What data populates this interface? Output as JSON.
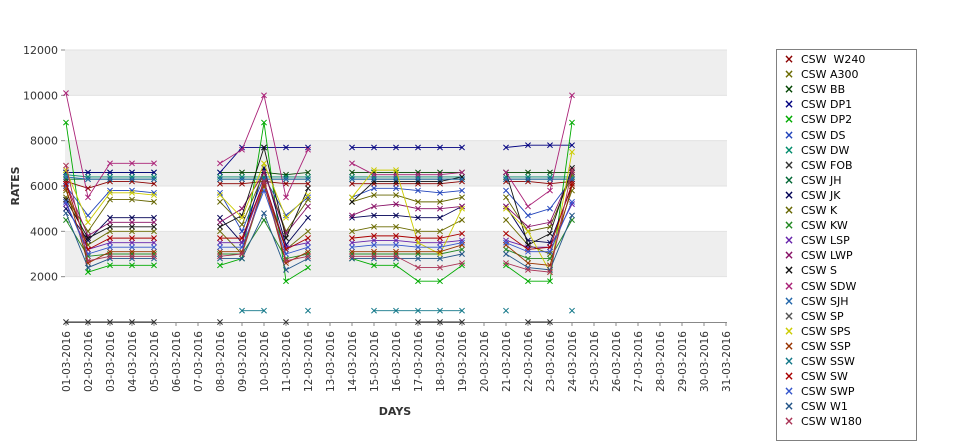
{
  "chart_data": {
    "type": "line",
    "title": "",
    "xlabel": "DAYS",
    "ylabel": "RATES",
    "ylim": [
      0,
      12000
    ],
    "yticks": [
      "2000",
      "4000",
      "6000",
      "8000",
      "10000",
      "12000"
    ],
    "grid": "horizontal alternating bands",
    "legend_position": "right",
    "categories": [
      "01-03-2016",
      "02-03-2016",
      "03-03-2016",
      "04-03-2016",
      "05-03-2016",
      "06-03-2016",
      "07-03-2016",
      "08-03-2016",
      "09-03-2016",
      "10-03-2016",
      "11-03-2016",
      "12-03-2016",
      "13-03-2016",
      "14-03-2016",
      "15-03-2016",
      "16-03-2016",
      "17-03-2016",
      "18-03-2016",
      "19-03-2016",
      "20-03-2016",
      "21-03-2016",
      "22-03-2016",
      "23-03-2016",
      "24-03-2016",
      "25-03-2016",
      "26-03-2016",
      "27-03-2016",
      "28-03-2016",
      "29-03-2016",
      "30-03-2016",
      "31-03-2016"
    ],
    "series": [
      {
        "name": "CSW  W240",
        "color": "#8b0000",
        "values": [
          6200,
          5900,
          6200,
          6200,
          6100,
          null,
          null,
          6100,
          6100,
          6200,
          6100,
          6100,
          null,
          6100,
          6100,
          6100,
          6100,
          6100,
          6200,
          null,
          6200,
          6200,
          6100,
          6200,
          null,
          null,
          null,
          null,
          null,
          null,
          null
        ]
      },
      {
        "name": "CSW A300",
        "color": "#6b6b00",
        "values": [
          5800,
          3400,
          4000,
          4000,
          4000,
          null,
          null,
          4000,
          3000,
          6000,
          3200,
          4000,
          null,
          4000,
          4200,
          4200,
          4000,
          4000,
          4500,
          null,
          4500,
          3400,
          3000,
          5800,
          null,
          null,
          null,
          null,
          null,
          null,
          null
        ]
      },
      {
        "name": "CSW BB",
        "color": "#004400",
        "values": [
          6600,
          6600,
          6600,
          6600,
          6600,
          null,
          null,
          6600,
          6600,
          6600,
          6500,
          6600,
          null,
          6600,
          6600,
          6600,
          6600,
          6600,
          6600,
          null,
          6600,
          6600,
          6600,
          6600,
          null,
          null,
          null,
          null,
          null,
          null,
          null
        ]
      },
      {
        "name": "CSW DP1",
        "color": "#000080",
        "values": [
          6600,
          6600,
          6600,
          6600,
          6600,
          null,
          null,
          6600,
          7700,
          7700,
          7700,
          7700,
          null,
          7700,
          7700,
          7700,
          7700,
          7700,
          7700,
          null,
          7700,
          7800,
          7800,
          7800,
          null,
          null,
          null,
          null,
          null,
          null,
          null
        ]
      },
      {
        "name": "CSW DP2",
        "color": "#00aa00",
        "values": [
          8800,
          2200,
          2500,
          2500,
          2500,
          null,
          null,
          2500,
          2800,
          8800,
          1800,
          2400,
          null,
          2800,
          2500,
          2500,
          1800,
          1800,
          2500,
          null,
          2500,
          1800,
          1800,
          8800,
          null,
          null,
          null,
          null,
          null,
          null,
          null
        ]
      },
      {
        "name": "CSW DS",
        "color": "#2244bb",
        "values": [
          6000,
          4700,
          5800,
          5800,
          5700,
          null,
          null,
          5700,
          4000,
          6400,
          4700,
          5500,
          null,
          5500,
          5900,
          5900,
          5800,
          5700,
          5800,
          null,
          5800,
          4700,
          5000,
          6300,
          null,
          null,
          null,
          null,
          null,
          null,
          null
        ]
      },
      {
        "name": "CSW DW",
        "color": "#008b6b",
        "values": [
          6500,
          6400,
          6400,
          6400,
          6400,
          null,
          null,
          6400,
          6400,
          6400,
          6400,
          6400,
          null,
          6400,
          6400,
          6400,
          6400,
          6400,
          6400,
          null,
          6400,
          6400,
          6400,
          6400,
          null,
          null,
          null,
          null,
          null,
          null,
          null
        ]
      },
      {
        "name": "CSW FOB",
        "color": "#333333",
        "values": [
          0,
          0,
          0,
          0,
          0,
          null,
          null,
          0,
          null,
          null,
          0,
          null,
          null,
          null,
          null,
          null,
          0,
          0,
          0,
          null,
          null,
          0,
          0,
          null,
          null,
          null,
          null,
          null,
          null,
          null,
          null
        ]
      },
      {
        "name": "CSW JH",
        "color": "#006633",
        "values": [
          6300,
          6300,
          6300,
          6300,
          6300,
          null,
          null,
          6300,
          6300,
          6300,
          6300,
          6300,
          null,
          6300,
          6300,
          6300,
          6300,
          6300,
          6300,
          null,
          6300,
          6300,
          6300,
          6300,
          null,
          null,
          null,
          null,
          null,
          null,
          null
        ]
      },
      {
        "name": "CSW JK",
        "color": "#000055",
        "values": [
          5000,
          3600,
          4600,
          4600,
          4600,
          null,
          null,
          4600,
          3500,
          6800,
          3400,
          4600,
          null,
          4600,
          4700,
          4700,
          4600,
          4600,
          5100,
          null,
          5100,
          3600,
          3500,
          6000,
          null,
          null,
          null,
          null,
          null,
          null,
          null
        ]
      },
      {
        "name": "CSW K",
        "color": "#666600",
        "values": [
          5500,
          4000,
          5400,
          5400,
          5300,
          null,
          null,
          5300,
          4300,
          6600,
          4000,
          5400,
          null,
          5300,
          5600,
          5600,
          5300,
          5300,
          5500,
          null,
          5500,
          4000,
          4200,
          6500,
          null,
          null,
          null,
          null,
          null,
          null,
          null
        ]
      },
      {
        "name": "CSW KW",
        "color": "#228822",
        "values": [
          4500,
          2900,
          3000,
          3000,
          3000,
          null,
          null,
          3000,
          3000,
          4500,
          2800,
          3000,
          null,
          3000,
          3000,
          3000,
          3000,
          3000,
          3200,
          null,
          3200,
          2800,
          2800,
          4500,
          null,
          null,
          null,
          null,
          null,
          null,
          null
        ]
      },
      {
        "name": "CSW LSP",
        "color": "#6622aa",
        "values": [
          5200,
          3200,
          3500,
          3500,
          3500,
          null,
          null,
          3500,
          3500,
          6200,
          3300,
          3500,
          null,
          3500,
          3600,
          3600,
          3500,
          3500,
          3600,
          null,
          3600,
          3300,
          3300,
          5200,
          null,
          null,
          null,
          null,
          null,
          null,
          null
        ]
      },
      {
        "name": "CSW LWP",
        "color": "#881166",
        "values": [
          6100,
          3800,
          4400,
          4400,
          4400,
          null,
          null,
          4400,
          5000,
          6600,
          3900,
          5100,
          null,
          4700,
          5100,
          5200,
          5000,
          5000,
          5100,
          null,
          5100,
          4200,
          4400,
          6600,
          null,
          null,
          null,
          null,
          null,
          null,
          null
        ]
      },
      {
        "name": "CSW S",
        "color": "#111111",
        "values": [
          5400,
          3700,
          4200,
          4200,
          4200,
          null,
          null,
          4200,
          4700,
          7700,
          3700,
          5900,
          null,
          5300,
          6200,
          6200,
          6200,
          6200,
          6400,
          null,
          6600,
          3400,
          3900,
          6800,
          null,
          null,
          null,
          null,
          null,
          null,
          null
        ]
      },
      {
        "name": "CSW SDW",
        "color": "#aa2277",
        "values": [
          10100,
          5500,
          7000,
          7000,
          7000,
          null,
          null,
          7000,
          7600,
          10000,
          5500,
          7600,
          null,
          7000,
          6500,
          6500,
          6500,
          6500,
          6600,
          null,
          6600,
          5100,
          5800,
          10000,
          null,
          null,
          null,
          null,
          null,
          null,
          null
        ]
      },
      {
        "name": "CSW SJH",
        "color": "#2266aa",
        "values": [
          6400,
          6300,
          6300,
          6300,
          6300,
          null,
          null,
          6300,
          6300,
          6300,
          6300,
          6300,
          null,
          6300,
          6300,
          6300,
          6300,
          6300,
          6300,
          null,
          6300,
          6300,
          6300,
          6300,
          null,
          null,
          null,
          null,
          null,
          null,
          null
        ]
      },
      {
        "name": "CSW SP",
        "color": "#555555",
        "values": [
          null,
          null,
          null,
          null,
          null,
          null,
          null,
          null,
          null,
          null,
          null,
          null,
          null,
          null,
          null,
          null,
          null,
          null,
          null,
          null,
          null,
          null,
          null,
          null,
          null,
          null,
          null,
          null,
          null,
          null,
          null
        ]
      },
      {
        "name": "CSW SPS",
        "color": "#cccc00",
        "values": [
          6700,
          4400,
          5700,
          5700,
          5600,
          null,
          null,
          5600,
          4600,
          7000,
          4600,
          5600,
          null,
          5500,
          6700,
          6700,
          3500,
          3000,
          5000,
          null,
          5000,
          4000,
          2200,
          7500,
          null,
          null,
          null,
          null,
          null,
          null,
          null
        ]
      },
      {
        "name": "CSW SSP",
        "color": "#993300",
        "values": [
          5900,
          2600,
          3100,
          3100,
          3100,
          null,
          null,
          3100,
          3100,
          6100,
          2600,
          3100,
          null,
          3100,
          3100,
          3100,
          3100,
          3100,
          3400,
          null,
          3400,
          2600,
          2500,
          6000,
          null,
          null,
          null,
          null,
          null,
          null,
          null
        ]
      },
      {
        "name": "CSW SSW",
        "color": "#117788",
        "values": [
          null,
          null,
          null,
          null,
          null,
          null,
          null,
          null,
          500,
          500,
          null,
          500,
          null,
          null,
          500,
          500,
          500,
          500,
          500,
          null,
          500,
          null,
          null,
          500,
          null,
          null,
          null,
          null,
          null,
          null,
          null
        ]
      },
      {
        "name": "CSW SW",
        "color": "#aa0000",
        "values": [
          6100,
          3200,
          3700,
          3700,
          3700,
          null,
          null,
          3700,
          3700,
          6200,
          3200,
          3700,
          null,
          3700,
          3800,
          3800,
          3700,
          3700,
          3900,
          null,
          3900,
          3200,
          3300,
          6100,
          null,
          null,
          null,
          null,
          null,
          null,
          null
        ]
      },
      {
        "name": "CSW SWP",
        "color": "#3355cc",
        "values": [
          5300,
          3000,
          3300,
          3300,
          3300,
          null,
          null,
          3300,
          3300,
          5800,
          3000,
          3300,
          null,
          3300,
          3400,
          3400,
          3300,
          3300,
          3500,
          null,
          3500,
          3100,
          3100,
          5300,
          null,
          null,
          null,
          null,
          null,
          null,
          null
        ]
      },
      {
        "name": "CSW W1",
        "color": "#225588",
        "values": [
          4800,
          2400,
          2800,
          2800,
          2800,
          null,
          null,
          2800,
          2800,
          4800,
          2300,
          2800,
          null,
          2800,
          2800,
          2800,
          2800,
          2800,
          3000,
          null,
          3000,
          2400,
          2300,
          4700,
          null,
          null,
          null,
          null,
          null,
          null,
          null
        ]
      },
      {
        "name": "CSW W180",
        "color": "#aa3355",
        "values": [
          6900,
          2700,
          2900,
          2900,
          2900,
          null,
          null,
          2900,
          3000,
          6200,
          2700,
          2900,
          null,
          2900,
          2900,
          2900,
          2400,
          2400,
          2600,
          null,
          2600,
          2300,
          2200,
          6700,
          null,
          null,
          null,
          null,
          null,
          null,
          null
        ]
      }
    ]
  }
}
